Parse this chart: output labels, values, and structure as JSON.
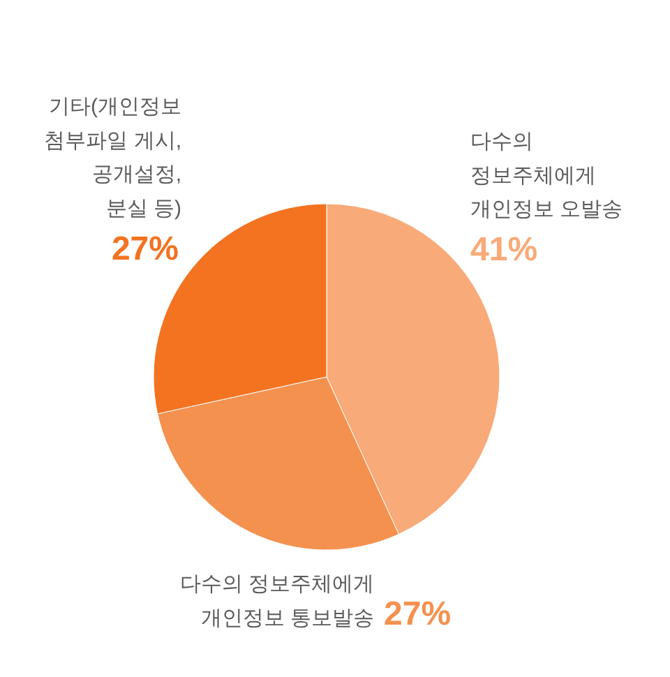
{
  "chart_data": {
    "type": "pie",
    "categories": [
      "다수의\n정보주체에게\n개인정보 오발송",
      "다수의 정보주체에게\n개인정보 통보발송",
      "기타(개인정보\n첨부파일 게시,\n공개설정,\n분실 등)"
    ],
    "values": [
      41,
      27,
      27
    ],
    "colors": [
      "#f8aa78",
      "#f4914f",
      "#f37321"
    ],
    "value_labels": [
      "41%",
      "27%",
      "27%"
    ]
  }
}
